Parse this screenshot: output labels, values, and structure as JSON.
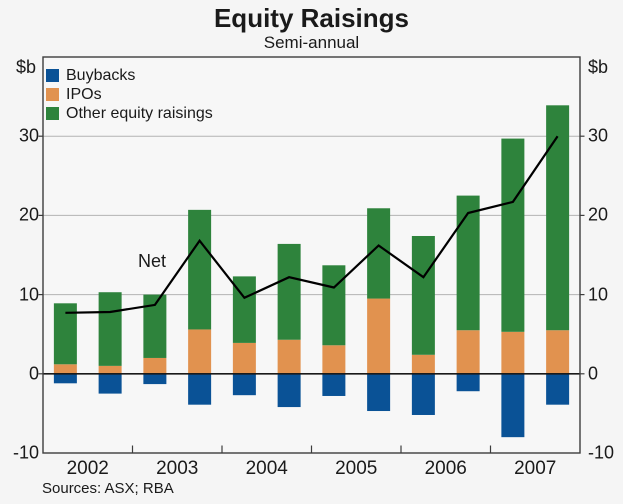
{
  "title": "Equity Raisings",
  "subtitle": "Semi-annual",
  "net_label": "Net",
  "footer": {
    "sources": "Sources: ASX; RBA"
  },
  "axis": {
    "unit_label": "$b",
    "y_ticks": [
      30,
      20,
      10,
      0,
      -10
    ],
    "y_min": -10,
    "y_max": 40,
    "years": [
      "2002",
      "2003",
      "2004",
      "2005",
      "2006",
      "2007"
    ]
  },
  "legend": [
    {
      "label": "Buybacks",
      "color": "#0A5296"
    },
    {
      "label": "IPOs",
      "color": "#E1924F"
    },
    {
      "label": "Other equity raisings",
      "color": "#2E833C"
    }
  ],
  "colors": {
    "net_line": "#000000",
    "grid_line": "#B3B3B3",
    "zero_line": "#1A1A1A",
    "frame": "#3D3D3D",
    "tick": "#3D3D3D",
    "plot_background": "#F7F7F7",
    "page_background": "#F5F5F5",
    "text": "#1A1A1A"
  },
  "chart_data": {
    "type": "bar",
    "subtype": "stacked-bars-with-net-line",
    "title": "Equity Raisings",
    "subtitle": "Semi-annual",
    "ylabel": "$b",
    "ylim": [
      -10,
      40
    ],
    "grid": true,
    "grid_values": [
      10,
      20,
      30
    ],
    "legend_position": "top-left",
    "sources": "Sources: ASX; RBA",
    "categories": [
      "2002 H1",
      "2002 H2",
      "2003 H1",
      "2003 H2",
      "2004 H1",
      "2004 H2",
      "2005 H1",
      "2005 H2",
      "2006 H1",
      "2006 H2",
      "2007 H1",
      "2007 H2"
    ],
    "series": [
      {
        "name": "Buybacks",
        "type": "bar",
        "color": "#0A5296",
        "values": [
          -1.2,
          -2.5,
          -1.3,
          -3.9,
          -2.7,
          -4.2,
          -2.8,
          -4.7,
          -5.2,
          -2.2,
          -8.0,
          -3.9
        ]
      },
      {
        "name": "IPOs",
        "type": "bar",
        "color": "#E1924F",
        "values": [
          1.2,
          1.0,
          2.0,
          5.6,
          3.9,
          4.3,
          3.6,
          9.5,
          2.4,
          5.5,
          5.3,
          5.5
        ]
      },
      {
        "name": "Other equity raisings",
        "type": "bar",
        "color": "#2E833C",
        "values": [
          7.7,
          9.3,
          8.0,
          15.1,
          8.4,
          12.1,
          10.1,
          11.4,
          15.0,
          17.0,
          24.4,
          28.4
        ]
      },
      {
        "name": "Net",
        "type": "line",
        "color": "#000000",
        "values": [
          7.7,
          7.8,
          8.7,
          16.8,
          9.6,
          12.2,
          10.9,
          16.2,
          12.2,
          20.3,
          21.7,
          30.0
        ]
      }
    ]
  }
}
